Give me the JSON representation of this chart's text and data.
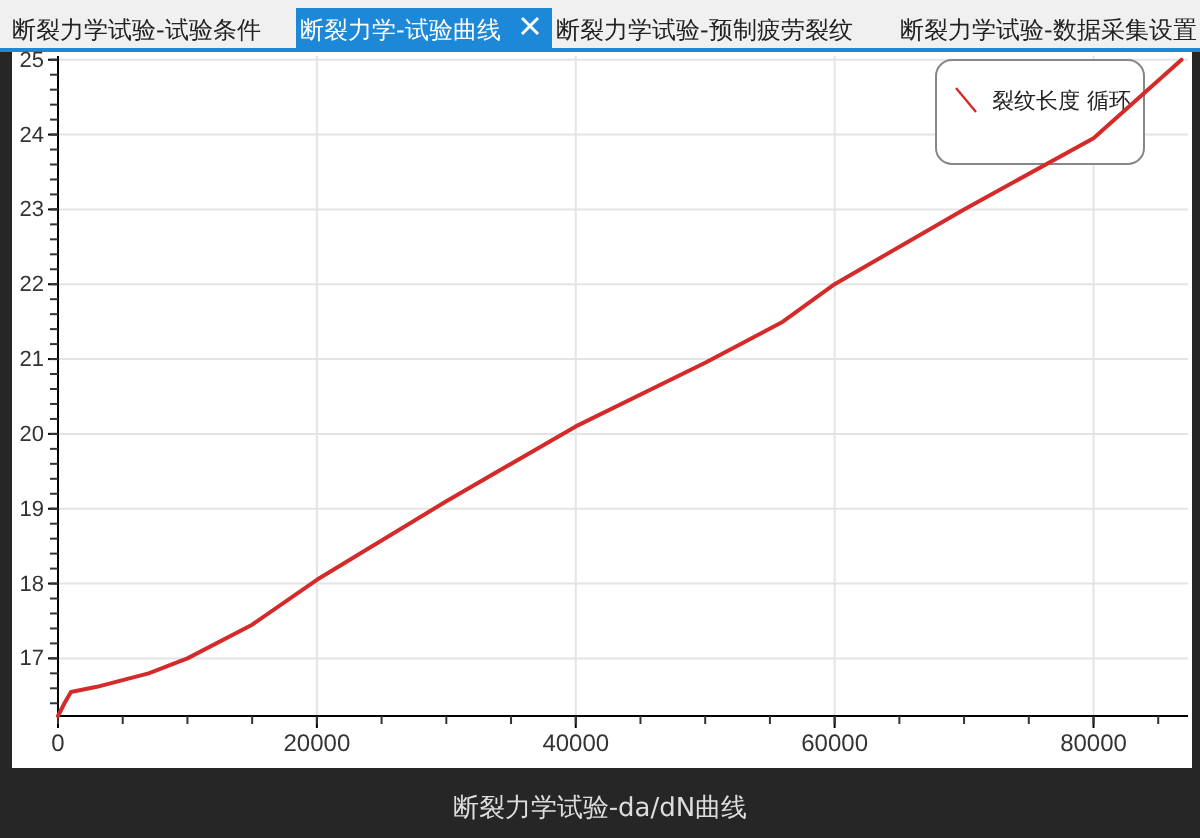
{
  "chart_data": {
    "type": "line",
    "title": "断裂力学试验-da/dN曲线",
    "annotations": [
      "断裂力学试验-试验条件",
      "断裂力学-试验曲线",
      "断裂力学试验-预制疲劳裂纹",
      "断裂力学试验-数据采集设置"
    ],
    "x": [
      0,
      500,
      1000,
      3000,
      7000,
      10000,
      15000,
      20000,
      30000,
      40000,
      50000,
      56000,
      60000,
      70000,
      80000,
      86800
    ],
    "series": [
      {
        "name": "裂纹长度 循环",
        "color": "#d42a2a",
        "values": [
          16.23,
          16.4,
          16.55,
          16.62,
          16.8,
          17.0,
          17.45,
          18.05,
          19.1,
          20.1,
          20.95,
          21.5,
          22.0,
          23.0,
          23.95,
          25.0
        ]
      }
    ],
    "xlim": [
      0,
      87300
    ],
    "ylim": [
      16.23,
      25.05
    ],
    "xticks": [
      0,
      20000,
      40000,
      60000,
      80000
    ],
    "yticks": [
      17,
      18,
      19,
      20,
      21,
      22,
      23,
      24,
      25
    ],
    "grid": true,
    "legend": "top right",
    "marker": "none",
    "line_style": "solid"
  }
}
